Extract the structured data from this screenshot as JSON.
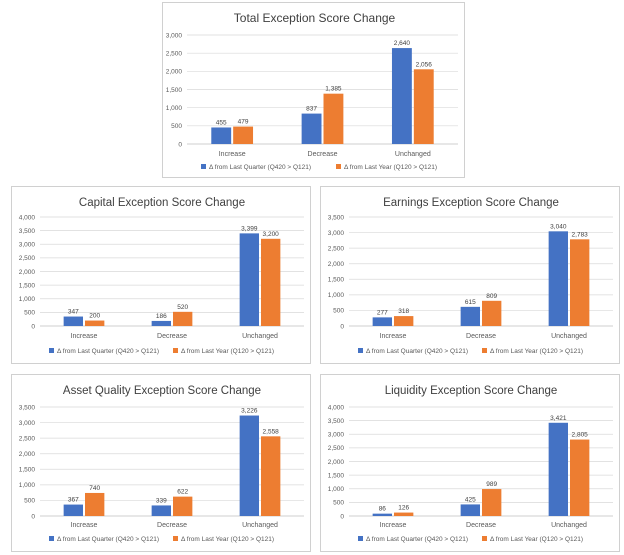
{
  "legend_labels": [
    "Δ from Last Quarter (Q420 > Q121)",
    "Δ from Last Year (Q120 > Q121)"
  ],
  "colors": {
    "series_1": "#4472c4",
    "series_2": "#ed7d31",
    "grid": "#d9d9d9",
    "axis": "#bfbfbf"
  },
  "chart_data": [
    {
      "type": "bar",
      "title": "Total Exception Score Change",
      "categories": [
        "Increase",
        "Decrease",
        "Unchanged"
      ],
      "yticks": [
        "0",
        "500",
        "1,000",
        "1,500",
        "2,000",
        "2,500",
        "3,000"
      ],
      "ylim": [
        0,
        3000
      ],
      "grid": true,
      "legend": "bottom",
      "series": [
        {
          "name": "Δ from Last Quarter (Q420 > Q121)",
          "values": [
            455,
            837,
            2640
          ],
          "labels": [
            "455",
            "837",
            "2,640"
          ]
        },
        {
          "name": "Δ from Last Year (Q120 > Q121)",
          "values": [
            479,
            1385,
            2056
          ],
          "labels": [
            "479",
            "1,385",
            "2,056"
          ]
        }
      ]
    },
    {
      "type": "bar",
      "title": "Capital Exception Score Change",
      "categories": [
        "Increase",
        "Decrease",
        "Unchanged"
      ],
      "yticks": [
        "0",
        "500",
        "1,000",
        "1,500",
        "2,000",
        "2,500",
        "3,000",
        "3,500",
        "4,000"
      ],
      "ylim": [
        0,
        4000
      ],
      "grid": true,
      "legend": "bottom",
      "series": [
        {
          "name": "Δ from Last Quarter (Q420 > Q121)",
          "values": [
            347,
            186,
            3399
          ],
          "labels": [
            "347",
            "186",
            "3,399"
          ]
        },
        {
          "name": "Δ from Last Year (Q120 > Q121)",
          "values": [
            200,
            520,
            3200
          ],
          "labels": [
            "200",
            "520",
            "3,200"
          ]
        }
      ]
    },
    {
      "type": "bar",
      "title": "Earnings Exception Score Change",
      "categories": [
        "Increase",
        "Decrease",
        "Unchanged"
      ],
      "yticks": [
        "0",
        "500",
        "1,000",
        "1,500",
        "2,000",
        "2,500",
        "3,000",
        "3,500"
      ],
      "ylim": [
        0,
        3500
      ],
      "grid": true,
      "legend": "bottom",
      "series": [
        {
          "name": "Δ from Last Quarter (Q420 > Q121)",
          "values": [
            277,
            615,
            3040
          ],
          "labels": [
            "277",
            "615",
            "3,040"
          ]
        },
        {
          "name": "Δ from Last Year (Q120 > Q121)",
          "values": [
            318,
            809,
            2783
          ],
          "labels": [
            "318",
            "809",
            "2,783"
          ]
        }
      ]
    },
    {
      "type": "bar",
      "title": "Asset Quality Exception Score Change",
      "categories": [
        "Increase",
        "Decrease",
        "Unchanged"
      ],
      "yticks": [
        "0",
        "500",
        "1,000",
        "1,500",
        "2,000",
        "2,500",
        "3,000",
        "3,500"
      ],
      "ylim": [
        0,
        3500
      ],
      "grid": true,
      "legend": "bottom",
      "series": [
        {
          "name": "Δ from Last Quarter (Q420 > Q121)",
          "values": [
            367,
            339,
            3226
          ],
          "labels": [
            "367",
            "339",
            "3,226"
          ]
        },
        {
          "name": "Δ from Last Year (Q120 > Q121)",
          "values": [
            740,
            622,
            2558
          ],
          "labels": [
            "740",
            "622",
            "2,558"
          ]
        }
      ]
    },
    {
      "type": "bar",
      "title": "Liquidity Exception Score Change",
      "categories": [
        "Increase",
        "Decrease",
        "Unchanged"
      ],
      "yticks": [
        "0",
        "500",
        "1,000",
        "1,500",
        "2,000",
        "2,500",
        "3,000",
        "3,500",
        "4,000"
      ],
      "ylim": [
        0,
        4000
      ],
      "grid": true,
      "legend": "bottom",
      "series": [
        {
          "name": "Δ from Last Quarter (Q420 > Q121)",
          "values": [
            86,
            425,
            3421
          ],
          "labels": [
            "86",
            "425",
            "3,421"
          ]
        },
        {
          "name": "Δ from Last Year (Q120 > Q121)",
          "values": [
            126,
            989,
            2805
          ],
          "labels": [
            "126",
            "989",
            "2,805"
          ]
        }
      ]
    }
  ]
}
